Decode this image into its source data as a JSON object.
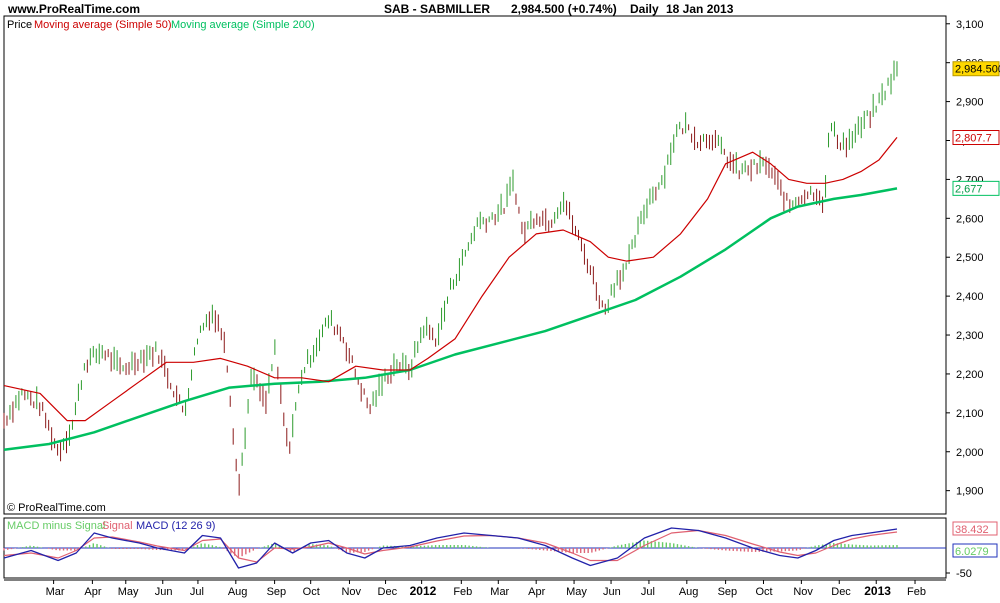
{
  "header": {
    "site": "www.ProRealTime.com",
    "symbol": "SAB - SABMILLER",
    "price_change": "2,984.500 (+0.74%)",
    "period": "Daily",
    "date": "18 Jan 2013"
  },
  "legend": {
    "price": "Price",
    "ma50": "Moving average (Simple 50)",
    "ma200": "Moving average (Simple 200)"
  },
  "watermark": "© ProRealTime.com",
  "macd_legend": {
    "hist": "MACD minus Signal",
    "signal": "Signal",
    "macd": "MACD (12 26 9)"
  },
  "colors": {
    "price": "#2e9b2e",
    "price_down": "#8b1a1a",
    "ma50": "#cc0000",
    "ma200": "#00c060",
    "macd": "#2222aa",
    "signal": "#e06070",
    "hist_pos": "#66cc66",
    "hist_neg": "#dd6677",
    "zero_line": "#2233bb",
    "last_price_bg": "#ffd800"
  },
  "chart_data": {
    "type": "line",
    "title": "SAB - SABMILLER",
    "ylim": [
      1840,
      3120
    ],
    "y_ticks": [
      1900,
      2000,
      2100,
      2200,
      2300,
      2400,
      2500,
      2600,
      2700,
      2800,
      2900,
      3000,
      3100
    ],
    "y_tick_labels": [
      "1,900",
      "2,000",
      "2,100",
      "2,200",
      "2,300",
      "2,400",
      "2,500",
      "2,600",
      "2,700",
      "2,800",
      "2,900",
      "3,000",
      "3,100"
    ],
    "x_ticks": [
      {
        "t": 0.055,
        "label": "Mar",
        "bold": false
      },
      {
        "t": 0.098,
        "label": "Apr",
        "bold": false
      },
      {
        "t": 0.135,
        "label": "May",
        "bold": false
      },
      {
        "t": 0.176,
        "label": "Jun",
        "bold": false
      },
      {
        "t": 0.215,
        "label": "Jul",
        "bold": false
      },
      {
        "t": 0.257,
        "label": "Aug",
        "bold": false
      },
      {
        "t": 0.3,
        "label": "Sep",
        "bold": false
      },
      {
        "t": 0.34,
        "label": "Oct",
        "bold": false
      },
      {
        "t": 0.383,
        "label": "Nov",
        "bold": false
      },
      {
        "t": 0.423,
        "label": "Dec",
        "bold": false
      },
      {
        "t": 0.463,
        "label": "2012",
        "bold": true
      },
      {
        "t": 0.507,
        "label": "Feb",
        "bold": false
      },
      {
        "t": 0.548,
        "label": "Mar",
        "bold": false
      },
      {
        "t": 0.59,
        "label": "Apr",
        "bold": false
      },
      {
        "t": 0.632,
        "label": "May",
        "bold": false
      },
      {
        "t": 0.673,
        "label": "Jun",
        "bold": false
      },
      {
        "t": 0.715,
        "label": "Jul",
        "bold": false
      },
      {
        "t": 0.757,
        "label": "Aug",
        "bold": false
      },
      {
        "t": 0.8,
        "label": "Sep",
        "bold": false
      },
      {
        "t": 0.842,
        "label": "Oct",
        "bold": false
      },
      {
        "t": 0.884,
        "label": "Nov",
        "bold": false
      },
      {
        "t": 0.926,
        "label": "Dec",
        "bold": false
      },
      {
        "t": 0.967,
        "label": "2013",
        "bold": true
      },
      {
        "t": 1.01,
        "label": "Feb",
        "bold": false
      }
    ],
    "price_path": [
      [
        0.0,
        2080
      ],
      [
        0.02,
        2150
      ],
      [
        0.04,
        2120
      ],
      [
        0.06,
        2000
      ],
      [
        0.075,
        2060
      ],
      [
        0.09,
        2230
      ],
      [
        0.11,
        2260
      ],
      [
        0.13,
        2210
      ],
      [
        0.15,
        2240
      ],
      [
        0.17,
        2260
      ],
      [
        0.19,
        2150
      ],
      [
        0.2,
        2100
      ],
      [
        0.215,
        2300
      ],
      [
        0.23,
        2360
      ],
      [
        0.245,
        2290
      ],
      [
        0.26,
        1900
      ],
      [
        0.275,
        2200
      ],
      [
        0.29,
        2120
      ],
      [
        0.3,
        2260
      ],
      [
        0.315,
        2000
      ],
      [
        0.33,
        2200
      ],
      [
        0.345,
        2270
      ],
      [
        0.36,
        2340
      ],
      [
        0.375,
        2300
      ],
      [
        0.39,
        2200
      ],
      [
        0.405,
        2110
      ],
      [
        0.42,
        2180
      ],
      [
        0.435,
        2230
      ],
      [
        0.45,
        2210
      ],
      [
        0.465,
        2320
      ],
      [
        0.48,
        2290
      ],
      [
        0.495,
        2420
      ],
      [
        0.51,
        2500
      ],
      [
        0.525,
        2590
      ],
      [
        0.54,
        2600
      ],
      [
        0.555,
        2630
      ],
      [
        0.565,
        2700
      ],
      [
        0.575,
        2560
      ],
      [
        0.59,
        2610
      ],
      [
        0.605,
        2590
      ],
      [
        0.62,
        2650
      ],
      [
        0.635,
        2560
      ],
      [
        0.65,
        2470
      ],
      [
        0.665,
        2360
      ],
      [
        0.68,
        2450
      ],
      [
        0.69,
        2470
      ],
      [
        0.7,
        2550
      ],
      [
        0.715,
        2650
      ],
      [
        0.73,
        2700
      ],
      [
        0.745,
        2820
      ],
      [
        0.755,
        2840
      ],
      [
        0.77,
        2800
      ],
      [
        0.785,
        2810
      ],
      [
        0.8,
        2760
      ],
      [
        0.815,
        2720
      ],
      [
        0.83,
        2730
      ],
      [
        0.845,
        2740
      ],
      [
        0.86,
        2680
      ],
      [
        0.87,
        2630
      ],
      [
        0.885,
        2660
      ],
      [
        0.9,
        2670
      ],
      [
        0.91,
        2640
      ],
      [
        0.915,
        2840
      ],
      [
        0.925,
        2800
      ],
      [
        0.935,
        2790
      ],
      [
        0.945,
        2820
      ],
      [
        0.955,
        2850
      ],
      [
        0.965,
        2880
      ],
      [
        0.975,
        2920
      ],
      [
        0.99,
        2985
      ]
    ],
    "ma50_path": [
      [
        0.0,
        2170
      ],
      [
        0.04,
        2150
      ],
      [
        0.07,
        2080
      ],
      [
        0.09,
        2080
      ],
      [
        0.12,
        2130
      ],
      [
        0.15,
        2180
      ],
      [
        0.18,
        2230
      ],
      [
        0.21,
        2230
      ],
      [
        0.24,
        2240
      ],
      [
        0.27,
        2220
      ],
      [
        0.3,
        2190
      ],
      [
        0.33,
        2190
      ],
      [
        0.36,
        2180
      ],
      [
        0.39,
        2220
      ],
      [
        0.42,
        2210
      ],
      [
        0.45,
        2210
      ],
      [
        0.47,
        2240
      ],
      [
        0.5,
        2290
      ],
      [
        0.53,
        2400
      ],
      [
        0.56,
        2500
      ],
      [
        0.59,
        2560
      ],
      [
        0.62,
        2570
      ],
      [
        0.65,
        2540
      ],
      [
        0.67,
        2500
      ],
      [
        0.69,
        2490
      ],
      [
        0.72,
        2500
      ],
      [
        0.75,
        2560
      ],
      [
        0.78,
        2650
      ],
      [
        0.8,
        2740
      ],
      [
        0.83,
        2770
      ],
      [
        0.85,
        2740
      ],
      [
        0.87,
        2700
      ],
      [
        0.89,
        2690
      ],
      [
        0.91,
        2690
      ],
      [
        0.93,
        2700
      ],
      [
        0.95,
        2720
      ],
      [
        0.97,
        2750
      ],
      [
        0.99,
        2808
      ]
    ],
    "ma200_path": [
      [
        0.0,
        2005
      ],
      [
        0.05,
        2020
      ],
      [
        0.1,
        2050
      ],
      [
        0.15,
        2090
      ],
      [
        0.2,
        2130
      ],
      [
        0.25,
        2165
      ],
      [
        0.3,
        2175
      ],
      [
        0.35,
        2180
      ],
      [
        0.4,
        2190
      ],
      [
        0.45,
        2210
      ],
      [
        0.5,
        2250
      ],
      [
        0.55,
        2280
      ],
      [
        0.6,
        2310
      ],
      [
        0.65,
        2350
      ],
      [
        0.7,
        2390
      ],
      [
        0.75,
        2450
      ],
      [
        0.8,
        2520
      ],
      [
        0.85,
        2600
      ],
      [
        0.88,
        2630
      ],
      [
        0.92,
        2650
      ],
      [
        0.95,
        2660
      ],
      [
        0.99,
        2677
      ]
    ],
    "last_price": 2984.5,
    "last_price_label": "2,984.500",
    "ma50_last": 2807.7,
    "ma50_last_label": "2,807.7",
    "ma200_last": 2677,
    "ma200_last_label": "2,677",
    "macd": {
      "ylim": [
        -60,
        60
      ],
      "y_ticks": [
        -50
      ],
      "y_tick_labels": [
        "-50"
      ],
      "macd_last_label": "38.432",
      "hist_last_label": "6.0279",
      "macd_path": [
        [
          0.0,
          -20
        ],
        [
          0.03,
          -5
        ],
        [
          0.06,
          -25
        ],
        [
          0.08,
          -10
        ],
        [
          0.1,
          30
        ],
        [
          0.12,
          20
        ],
        [
          0.15,
          10
        ],
        [
          0.17,
          0
        ],
        [
          0.2,
          -10
        ],
        [
          0.22,
          25
        ],
        [
          0.24,
          20
        ],
        [
          0.26,
          -40
        ],
        [
          0.28,
          -30
        ],
        [
          0.3,
          10
        ],
        [
          0.32,
          -10
        ],
        [
          0.34,
          10
        ],
        [
          0.36,
          15
        ],
        [
          0.38,
          -10
        ],
        [
          0.4,
          -20
        ],
        [
          0.42,
          0
        ],
        [
          0.45,
          5
        ],
        [
          0.48,
          20
        ],
        [
          0.51,
          30
        ],
        [
          0.54,
          25
        ],
        [
          0.57,
          20
        ],
        [
          0.6,
          5
        ],
        [
          0.63,
          -20
        ],
        [
          0.65,
          -35
        ],
        [
          0.68,
          -20
        ],
        [
          0.71,
          20
        ],
        [
          0.74,
          40
        ],
        [
          0.77,
          35
        ],
        [
          0.8,
          20
        ],
        [
          0.83,
          0
        ],
        [
          0.86,
          -15
        ],
        [
          0.88,
          -20
        ],
        [
          0.9,
          -5
        ],
        [
          0.92,
          15
        ],
        [
          0.94,
          25
        ],
        [
          0.96,
          30
        ],
        [
          0.99,
          38
        ]
      ],
      "signal_path": [
        [
          0.0,
          -15
        ],
        [
          0.03,
          -10
        ],
        [
          0.06,
          -20
        ],
        [
          0.08,
          -5
        ],
        [
          0.1,
          20
        ],
        [
          0.12,
          22
        ],
        [
          0.15,
          12
        ],
        [
          0.17,
          4
        ],
        [
          0.2,
          -5
        ],
        [
          0.22,
          15
        ],
        [
          0.24,
          18
        ],
        [
          0.26,
          -20
        ],
        [
          0.28,
          -28
        ],
        [
          0.3,
          0
        ],
        [
          0.32,
          -2
        ],
        [
          0.34,
          2
        ],
        [
          0.36,
          10
        ],
        [
          0.38,
          0
        ],
        [
          0.4,
          -12
        ],
        [
          0.42,
          -5
        ],
        [
          0.45,
          2
        ],
        [
          0.48,
          14
        ],
        [
          0.51,
          24
        ],
        [
          0.54,
          25
        ],
        [
          0.57,
          20
        ],
        [
          0.6,
          10
        ],
        [
          0.63,
          -10
        ],
        [
          0.65,
          -25
        ],
        [
          0.68,
          -25
        ],
        [
          0.71,
          5
        ],
        [
          0.74,
          30
        ],
        [
          0.77,
          35
        ],
        [
          0.8,
          25
        ],
        [
          0.83,
          8
        ],
        [
          0.86,
          -8
        ],
        [
          0.88,
          -15
        ],
        [
          0.9,
          -10
        ],
        [
          0.92,
          5
        ],
        [
          0.94,
          18
        ],
        [
          0.96,
          25
        ],
        [
          0.99,
          32
        ]
      ]
    }
  }
}
